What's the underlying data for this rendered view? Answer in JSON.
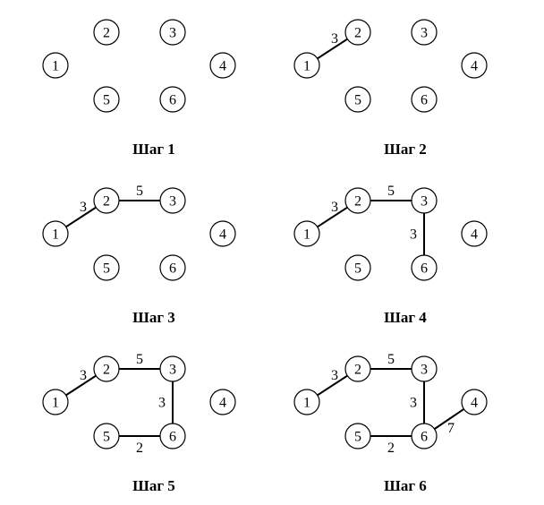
{
  "steps": [
    {
      "label": "Шаг 1",
      "nodes": [
        "1",
        "2",
        "3",
        "4",
        "5",
        "6"
      ],
      "edges": []
    },
    {
      "label": "Шаг 2",
      "nodes": [
        "1",
        "2",
        "3",
        "4",
        "5",
        "6"
      ],
      "edges": [
        {
          "from": "1",
          "to": "2",
          "weight": "3"
        }
      ]
    },
    {
      "label": "Шаг 3",
      "nodes": [
        "1",
        "2",
        "3",
        "4",
        "5",
        "6"
      ],
      "edges": [
        {
          "from": "1",
          "to": "2",
          "weight": "3"
        },
        {
          "from": "2",
          "to": "3",
          "weight": "5"
        }
      ]
    },
    {
      "label": "Шаг 4",
      "nodes": [
        "1",
        "2",
        "3",
        "4",
        "5",
        "6"
      ],
      "edges": [
        {
          "from": "1",
          "to": "2",
          "weight": "3"
        },
        {
          "from": "2",
          "to": "3",
          "weight": "5"
        },
        {
          "from": "3",
          "to": "6",
          "weight": "3"
        }
      ]
    },
    {
      "label": "Шаг 5",
      "nodes": [
        "1",
        "2",
        "3",
        "4",
        "5",
        "6"
      ],
      "edges": [
        {
          "from": "1",
          "to": "2",
          "weight": "3"
        },
        {
          "from": "2",
          "to": "3",
          "weight": "5"
        },
        {
          "from": "3",
          "to": "6",
          "weight": "3"
        },
        {
          "from": "5",
          "to": "6",
          "weight": "2"
        }
      ]
    },
    {
      "label": "Шаг 6",
      "nodes": [
        "1",
        "2",
        "3",
        "4",
        "5",
        "6"
      ],
      "edges": [
        {
          "from": "1",
          "to": "2",
          "weight": "3"
        },
        {
          "from": "2",
          "to": "3",
          "weight": "5"
        },
        {
          "from": "3",
          "to": "6",
          "weight": "3"
        },
        {
          "from": "5",
          "to": "6",
          "weight": "2"
        },
        {
          "from": "6",
          "to": "4",
          "weight": "7"
        }
      ]
    }
  ]
}
